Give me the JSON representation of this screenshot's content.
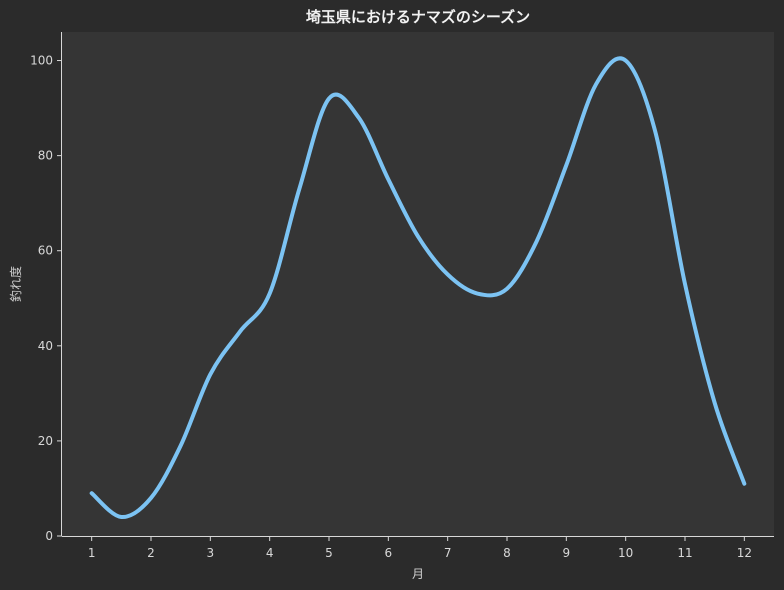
{
  "chart_data": {
    "type": "line",
    "title": "埼玉県におけるナマズのシーズン",
    "xlabel": "月",
    "ylabel": "釣れ度",
    "xlim": [
      0.5,
      12.5
    ],
    "ylim": [
      0,
      106
    ],
    "x_ticks": [
      1,
      2,
      3,
      4,
      5,
      6,
      7,
      8,
      9,
      10,
      11,
      12
    ],
    "y_ticks": [
      0,
      20,
      40,
      60,
      80,
      100
    ],
    "grid": false,
    "series": [
      {
        "color": "#7cc3f3",
        "x": [
          1,
          1.5,
          2,
          2.5,
          3,
          3.5,
          4,
          4.5,
          5,
          5.5,
          6,
          6.5,
          7,
          7.5,
          8,
          8.5,
          9,
          9.5,
          10,
          10.5,
          11,
          11.5,
          12
        ],
        "values": [
          9,
          4,
          8,
          19,
          34,
          43,
          51,
          73,
          92,
          88,
          75,
          63,
          55,
          51,
          52,
          62,
          78,
          95,
          100,
          85,
          53,
          28,
          11
        ]
      }
    ]
  },
  "colors": {
    "background": "#2b2b2b",
    "plot_background": "#353535",
    "line": "#7cc3f3",
    "text": "#d8d8d8"
  }
}
